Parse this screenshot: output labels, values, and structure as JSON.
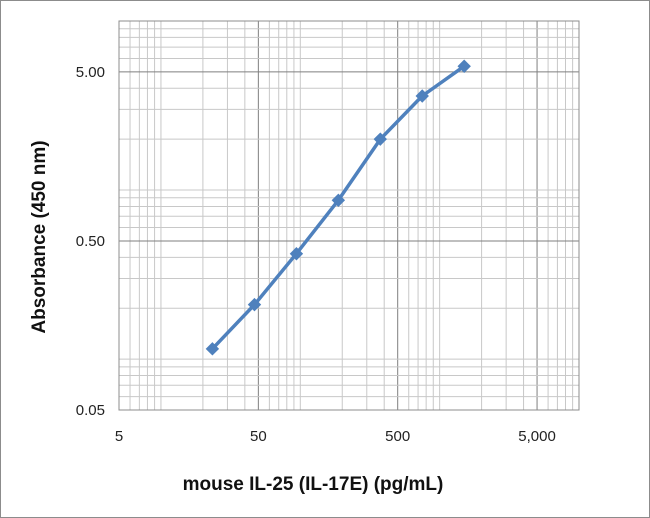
{
  "chart_data": {
    "type": "line",
    "title": "",
    "xlabel": "mouse IL-25 (IL-17E) (pg/mL)",
    "ylabel": "Absorbance  (450 nm)",
    "x_scale": "log",
    "y_scale": "log",
    "xlim": [
      5,
      10000
    ],
    "ylim": [
      0.05,
      10
    ],
    "x_ticks": [
      {
        "value": 5,
        "label": "5"
      },
      {
        "value": 50,
        "label": "50"
      },
      {
        "value": 500,
        "label": "500"
      },
      {
        "value": 5000,
        "label": "5,000"
      }
    ],
    "y_ticks": [
      {
        "value": 0.05,
        "label": "0.05"
      },
      {
        "value": 0.5,
        "label": "0.50"
      },
      {
        "value": 5,
        "label": "5.00"
      }
    ],
    "grid": true,
    "legend": "none",
    "line_color": "#4f81bd",
    "marker": "diamond",
    "series": [
      {
        "name": "",
        "x": [
          23.4,
          46.9,
          93.8,
          187.5,
          375,
          750,
          1500
        ],
        "y": [
          0.115,
          0.21,
          0.42,
          0.87,
          2.0,
          3.6,
          5.4
        ]
      }
    ]
  }
}
